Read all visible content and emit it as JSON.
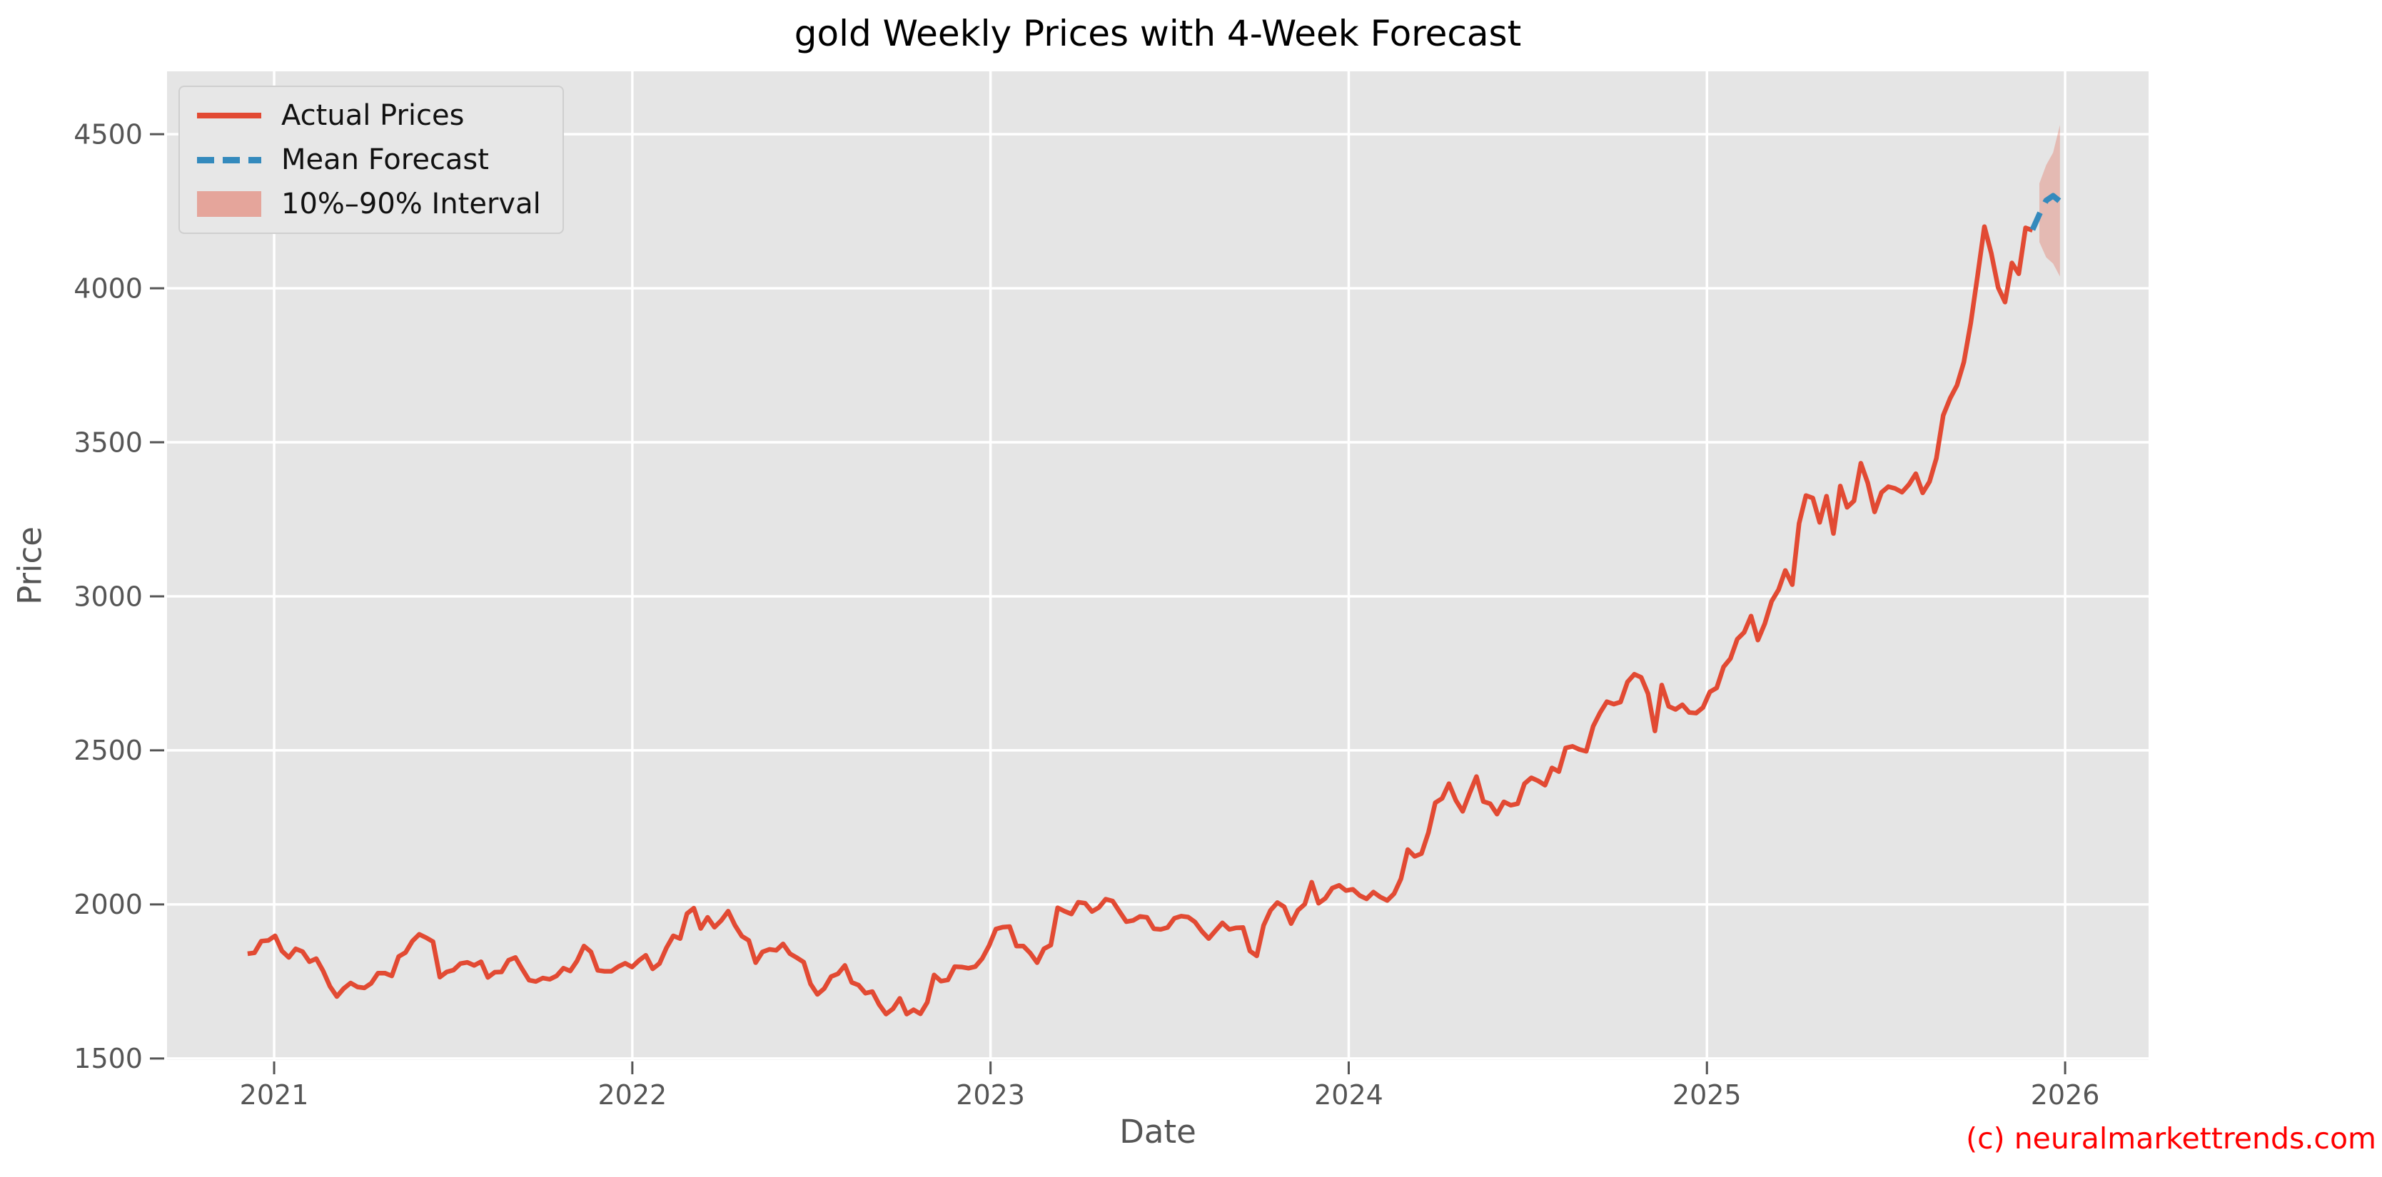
{
  "title": "gold Weekly Prices with 4-Week Forecast",
  "watermark": "(c) neuralmarkettrends.com",
  "x_axis": {
    "label": "Date",
    "ticks": [
      "2021",
      "2022",
      "2023",
      "2024",
      "2025",
      "2026"
    ]
  },
  "y_axis": {
    "label": "Price",
    "ticks": [
      "1500",
      "2000",
      "2500",
      "3000",
      "3500",
      "4000",
      "4500"
    ]
  },
  "legend": {
    "items": [
      {
        "label": "Actual Prices",
        "swatch": "solid-line",
        "color": "#e24a33"
      },
      {
        "label": "Mean Forecast",
        "swatch": "dashed-line",
        "color": "#348abd"
      },
      {
        "label": "10%–90% Interval",
        "swatch": "filled-band",
        "color": "rgba(226,74,51,0.42)"
      }
    ]
  },
  "colors": {
    "plot_background": "#e5e5e5",
    "grid": "#ffffff",
    "actual_line": "#e24a33",
    "forecast_line": "#348abd",
    "interval_fill": "rgba(226,74,51,0.28)",
    "tick_text": "#555555",
    "title_text": "#000000",
    "watermark_text": "#ff0000"
  },
  "chart_data": {
    "type": "line",
    "title": "gold Weekly Prices with 4-Week Forecast",
    "xlabel": "Date",
    "ylabel": "Price",
    "xlim": [
      2020.701,
      2026.233
    ],
    "ylim": [
      1495,
      4704
    ],
    "x_ticks": [
      2021,
      2022,
      2023,
      2024,
      2025,
      2026
    ],
    "y_ticks": [
      1500,
      2000,
      2500,
      3000,
      3500,
      4000,
      4500
    ],
    "grid": true,
    "legend_position": "upper-left",
    "x_start_year": 2020.926,
    "week_step_years": 0.019165,
    "series": [
      {
        "name": "Actual Prices",
        "style": "solid",
        "color": "#e24a33",
        "values": [
          1840,
          1843,
          1881,
          1883,
          1898,
          1849,
          1828,
          1856,
          1847,
          1814,
          1824,
          1784,
          1734,
          1701,
          1727,
          1745,
          1732,
          1729,
          1744,
          1777,
          1777,
          1768,
          1831,
          1844,
          1881,
          1903,
          1892,
          1879,
          1764,
          1781,
          1787,
          1808,
          1812,
          1802,
          1814,
          1763,
          1780,
          1781,
          1819,
          1828,
          1790,
          1754,
          1750,
          1761,
          1757,
          1768,
          1793,
          1784,
          1817,
          1865,
          1846,
          1786,
          1783,
          1783,
          1798,
          1809,
          1797,
          1818,
          1835,
          1791,
          1808,
          1859,
          1898,
          1889,
          1970,
          1988,
          1922,
          1958,
          1926,
          1948,
          1978,
          1932,
          1897,
          1883,
          1811,
          1846,
          1854,
          1851,
          1872,
          1840,
          1827,
          1813,
          1742,
          1708,
          1727,
          1766,
          1775,
          1802,
          1747,
          1738,
          1712,
          1717,
          1675,
          1644,
          1661,
          1695,
          1644,
          1658,
          1645,
          1682,
          1771,
          1751,
          1755,
          1798,
          1797,
          1793,
          1798,
          1824,
          1866,
          1920,
          1926,
          1928,
          1865,
          1865,
          1842,
          1811,
          1856,
          1868,
          1989,
          1978,
          1969,
          2007,
          2004,
          1977,
          1990,
          2017,
          2011,
          1977,
          1944,
          1948,
          1961,
          1958,
          1921,
          1919,
          1925,
          1955,
          1962,
          1959,
          1943,
          1913,
          1889,
          1915,
          1940,
          1919,
          1924,
          1925,
          1849,
          1833,
          1932,
          1981,
          2006,
          1992,
          1938,
          1981,
          2001,
          2072,
          2004,
          2020,
          2053,
          2062,
          2045,
          2049,
          2029,
          2018,
          2040,
          2024,
          2013,
          2035,
          2083,
          2178,
          2156,
          2165,
          2233,
          2330,
          2344,
          2392,
          2338,
          2302,
          2361,
          2415,
          2334,
          2327,
          2293,
          2333,
          2322,
          2327,
          2392,
          2411,
          2401,
          2387,
          2443,
          2431,
          2508,
          2513,
          2503,
          2497,
          2578,
          2622,
          2658,
          2650,
          2657,
          2722,
          2747,
          2737,
          2684,
          2563,
          2712,
          2643,
          2633,
          2648,
          2623,
          2621,
          2639,
          2690,
          2703,
          2771,
          2798,
          2861,
          2883,
          2936,
          2858,
          2911,
          2984,
          3021,
          3084,
          3038,
          3237,
          3327,
          3319,
          3240,
          3325,
          3204,
          3358,
          3289,
          3310,
          3432,
          3368,
          3274,
          3337,
          3356,
          3350,
          3338,
          3363,
          3398,
          3336,
          3372,
          3448,
          3587,
          3643,
          3685,
          3760,
          3886,
          4040,
          4200,
          4113,
          4002,
          3955,
          4082,
          4047,
          4196,
          4188
        ]
      },
      {
        "name": "Mean Forecast",
        "style": "dashed",
        "color": "#348abd",
        "anchor_to_last_actual": true,
        "values": [
          4190,
          4240,
          4285,
          4300,
          4282
        ]
      }
    ],
    "interval": {
      "name": "10%–90% Interval",
      "weeks_after_last_actual": [
        1,
        2,
        3,
        4
      ],
      "lower": [
        4150,
        4100,
        4080,
        4038
      ],
      "upper": [
        4340,
        4400,
        4440,
        4530
      ]
    }
  }
}
